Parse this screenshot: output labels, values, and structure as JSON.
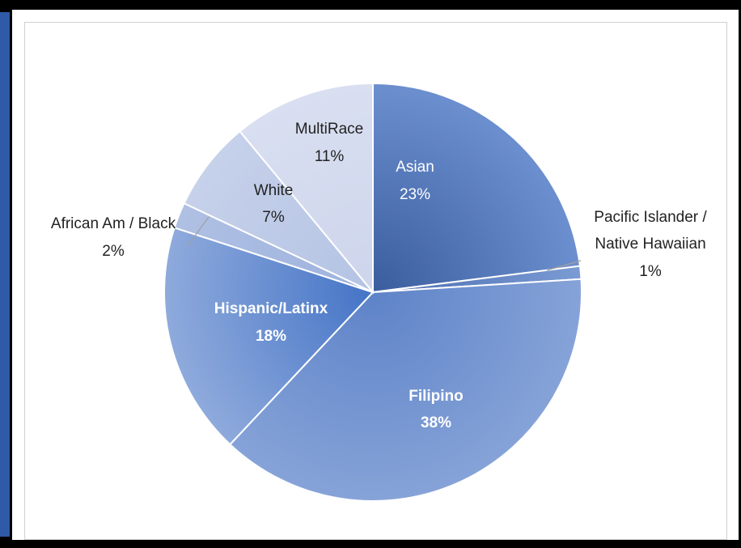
{
  "chart_data": {
    "type": "pie",
    "title": "",
    "slices": [
      {
        "label": "Asian",
        "value": 23,
        "display": "23%",
        "color_outer": "#3A5D9E",
        "color_inner": "#6C8FCF",
        "label_color": "#ffffff"
      },
      {
        "label": "Pacific Islander / Native Hawaiian",
        "value": 1,
        "display": "1%",
        "color_outer": "#4A6DB0",
        "color_inner": "#7B9BD4",
        "label_color": "#222222"
      },
      {
        "label": "Filipino",
        "value": 38,
        "display": "38%",
        "color_outer": "#5E83C8",
        "color_inner": "#86A3D8",
        "label_color": "#ffffff"
      },
      {
        "label": "Hispanic/Latinx",
        "value": 18,
        "display": "18%",
        "color_outer": "#4474C6",
        "color_inner": "#8FAADC",
        "label_color": "#ffffff"
      },
      {
        "label": "African Am / Black",
        "value": 2,
        "display": "2%",
        "color_outer": "#9DB2DE",
        "color_inner": "#AFC0E3",
        "label_color": "#222222"
      },
      {
        "label": "White",
        "value": 7,
        "display": "7%",
        "color_outer": "#B4C3E4",
        "color_inner": "#C6D1EA",
        "label_color": "#222222"
      },
      {
        "label": "MultiRace",
        "value": 11,
        "display": "11%",
        "color_outer": "#CDD5EC",
        "color_inner": "#D9DFF1",
        "label_color": "#222222"
      }
    ]
  },
  "labels": {
    "asian_name": "Asian",
    "asian_pct": "23%",
    "pi_name_1": "Pacific Islander /",
    "pi_name_2": "Native Hawaiian",
    "pi_pct": "1%",
    "filipino_name": "Filipino",
    "filipino_pct": "38%",
    "hispanic_name": "Hispanic/Latinx",
    "hispanic_pct": "18%",
    "black_name": "African Am / Black",
    "black_pct": "2%",
    "white_name": "White",
    "white_pct": "7%",
    "multi_name": "MultiRace",
    "multi_pct": "11%"
  },
  "colors": {
    "page_background": "#000000",
    "left_accent": "#2E5AA8",
    "chart_background": "#ffffff",
    "leader_line": "#a0a0a0"
  }
}
